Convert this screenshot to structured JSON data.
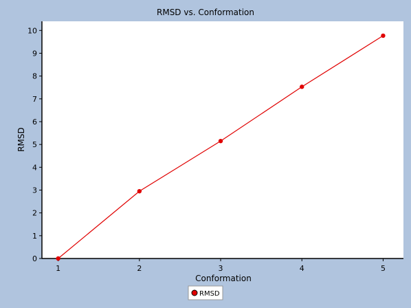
{
  "window_title": "",
  "chart_data": {
    "type": "line",
    "title": "RMSD vs. Conformation",
    "xlabel": "Conformation",
    "ylabel": "RMSD",
    "x": [
      1,
      2,
      3,
      4,
      5
    ],
    "series": [
      {
        "name": "RMSD",
        "values": [
          0.0,
          2.95,
          5.15,
          7.53,
          9.77
        ],
        "color": "#e00000"
      }
    ],
    "xlim": [
      0.8,
      5.25
    ],
    "ylim": [
      0,
      10.4
    ],
    "xticks": [
      "1",
      "2",
      "3",
      "4",
      "5"
    ],
    "yticks": [
      "0",
      "1",
      "2",
      "3",
      "4",
      "5",
      "6",
      "7",
      "8",
      "9",
      "10"
    ],
    "grid": false,
    "legend_position": "bottom-center",
    "colors": {
      "background": "#b0c4de",
      "plot_background": "#ffffff",
      "series": "#e00000"
    }
  }
}
